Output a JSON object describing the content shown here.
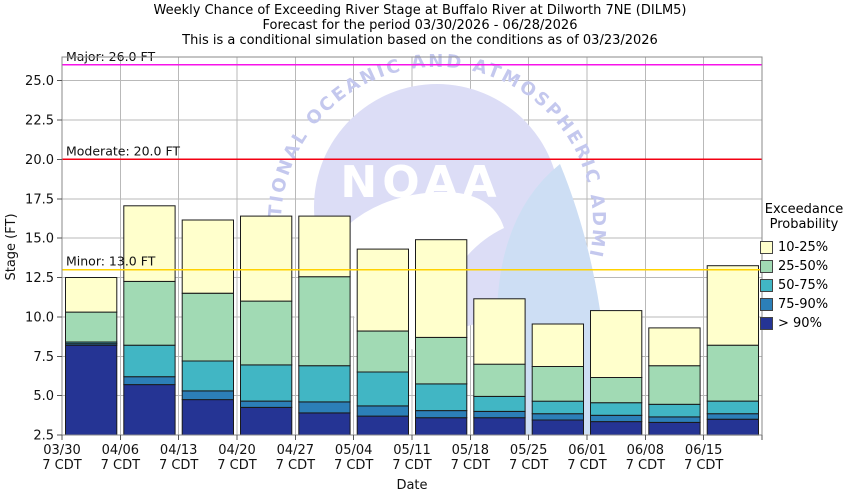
{
  "title": {
    "line1": "Weekly Chance of Exceeding River Stage at Buffalo River at Dilworth 7NE (DILM5)",
    "line2": "Forecast for the period 03/30/2026 - 06/28/2026",
    "line3": "This is a conditional simulation based on the conditions as of 03/23/2026"
  },
  "watermark": {
    "org_text": "NATIONAL OCEANIC AND ATMOSPHERIC ADMINISTRATION",
    "wordmark": "NOAA",
    "circle_color": "#dcddf6",
    "arc_text_color": "#c4c8ee",
    "sail_color": "#cddef4"
  },
  "legend": {
    "title_line1": "Exceedance",
    "title_line2": "Probability",
    "items": [
      {
        "label": "10-25%",
        "color": "#ffffcc"
      },
      {
        "label": "25-50%",
        "color": "#a1dab4"
      },
      {
        "label": "50-75%",
        "color": "#41b6c4"
      },
      {
        "label": "75-90%",
        "color": "#2c7fb8"
      },
      {
        "label": "> 90%",
        "color": "#253494"
      }
    ]
  },
  "chart_data": {
    "type": "bar",
    "stacked": true,
    "title": "Weekly Chance of Exceeding River Stage at Buffalo River at Dilworth 7NE (DILM5)",
    "xlabel": "Date",
    "ylabel": "Stage (FT)",
    "ylim": [
      2.5,
      26.5
    ],
    "yticks": [
      2.5,
      5.0,
      7.5,
      10.0,
      12.5,
      15.0,
      17.5,
      20.0,
      22.5,
      25.0
    ],
    "grid": true,
    "legend_position": "right",
    "baseline_ft": 2.5,
    "categories": [
      "03/30",
      "04/06",
      "04/13",
      "04/20",
      "04/27",
      "05/04",
      "05/11",
      "05/18",
      "05/25",
      "06/01",
      "06/08",
      "06/15"
    ],
    "tick_suffix": "7 CDT",
    "series": [
      {
        "name": "> 90%",
        "color": "#253494",
        "cumulative_top_ft": [
          8.2,
          5.7,
          4.75,
          4.25,
          3.9,
          3.7,
          3.6,
          3.6,
          3.45,
          3.35,
          3.3,
          3.5
        ]
      },
      {
        "name": "75-90%",
        "color": "#2c7fb8",
        "cumulative_top_ft": [
          8.3,
          6.2,
          5.3,
          4.65,
          4.6,
          4.35,
          4.05,
          4.0,
          3.85,
          3.75,
          3.65,
          3.85
        ]
      },
      {
        "name": "50-75%",
        "color": "#41b6c4",
        "cumulative_top_ft": [
          8.4,
          8.2,
          7.2,
          6.95,
          6.9,
          6.5,
          5.75,
          4.95,
          4.65,
          4.55,
          4.45,
          4.65
        ]
      },
      {
        "name": "25-50%",
        "color": "#a1dab4",
        "cumulative_top_ft": [
          10.3,
          12.25,
          11.5,
          11.0,
          12.55,
          9.1,
          8.7,
          7.0,
          6.85,
          6.15,
          6.9,
          8.2
        ]
      },
      {
        "name": "10-25%",
        "color": "#ffffcc",
        "cumulative_top_ft": [
          12.5,
          17.05,
          16.15,
          16.4,
          16.4,
          14.3,
          14.9,
          11.15,
          9.55,
          10.4,
          9.3,
          13.25
        ]
      }
    ],
    "thresholds": [
      {
        "name": "Major",
        "label": "Major: 26.0 FT",
        "value_ft": 26.0,
        "color": "#f713e9"
      },
      {
        "name": "Moderate",
        "label": "Moderate: 20.0 FT",
        "value_ft": 20.0,
        "color": "#f30013"
      },
      {
        "name": "Minor",
        "label": "Minor: 13.0 FT",
        "value_ft": 13.0,
        "color": "#ffd200"
      }
    ]
  }
}
